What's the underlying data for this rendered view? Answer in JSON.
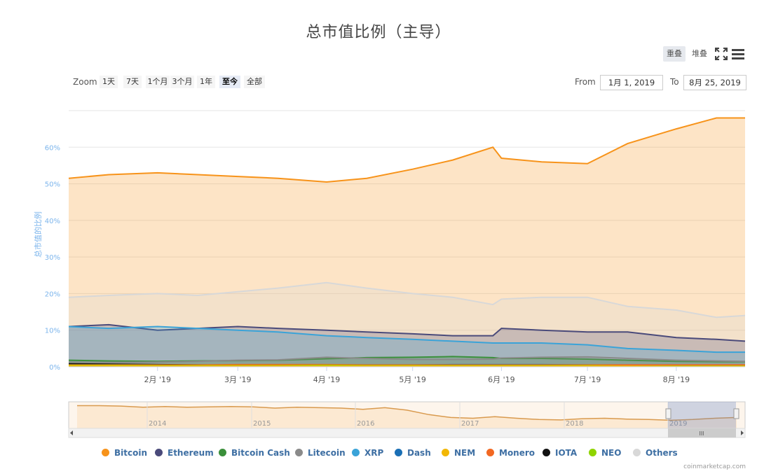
{
  "title": "总市值比例（主导）",
  "toolbar": {
    "overlap": "重叠",
    "stacked": "堆叠",
    "fullscreen_icon": "fullscreen-icon",
    "menu_icon": "hamburger-menu-icon"
  },
  "zoom": {
    "label": "Zoom",
    "buttons": [
      "1天",
      "7天",
      "1个月",
      "3个月",
      "1年",
      "至今",
      "全部"
    ],
    "active": "至今"
  },
  "range": {
    "from_label": "From",
    "from_value": "1月 1, 2019",
    "to_label": "To",
    "to_value": "8月 25, 2019"
  },
  "chart_data": {
    "type": "area",
    "ylabel": "总市值的比例",
    "ylim": [
      0,
      70
    ],
    "yticks": [
      "0%",
      "10%",
      "20%",
      "30%",
      "40%",
      "50%",
      "60%"
    ],
    "xticks": [
      "2月 '19",
      "3月 '19",
      "4月 '19",
      "5月 '19",
      "6月 '19",
      "7月 '19",
      "8月 '19"
    ],
    "x": [
      "2019-01-01",
      "2019-01-15",
      "2019-02-01",
      "2019-02-15",
      "2019-03-01",
      "2019-03-15",
      "2019-04-01",
      "2019-04-15",
      "2019-05-01",
      "2019-05-15",
      "2019-05-29",
      "2019-06-01",
      "2019-06-15",
      "2019-07-01",
      "2019-07-15",
      "2019-08-01",
      "2019-08-15",
      "2019-08-25"
    ],
    "series": [
      {
        "name": "Bitcoin",
        "color": "#f7931a",
        "values": [
          51.5,
          52.5,
          53,
          52.5,
          52,
          51.5,
          50.5,
          51.5,
          54,
          56.5,
          60,
          57,
          56,
          55.5,
          61,
          65,
          68,
          68
        ]
      },
      {
        "name": "Ethereum",
        "color": "#4a4a7a",
        "values": [
          11,
          11.5,
          10,
          10.5,
          11,
          10.5,
          10,
          9.5,
          9,
          8.5,
          8.5,
          10.5,
          10,
          9.5,
          9.5,
          8,
          7.5,
          7
        ]
      },
      {
        "name": "Bitcoin Cash",
        "color": "#3a8f3a",
        "values": [
          1.8,
          1.6,
          1.5,
          1.6,
          1.7,
          1.8,
          2.2,
          2.5,
          2.6,
          2.8,
          2.5,
          2.3,
          2.3,
          2.1,
          1.8,
          1.5,
          1.4,
          1.4
        ]
      },
      {
        "name": "Litecoin",
        "color": "#8a8a8a",
        "values": [
          1.3,
          1.2,
          1.3,
          1.5,
          1.8,
          1.9,
          2.6,
          2.3,
          2.0,
          2.0,
          2.1,
          2.4,
          2.6,
          2.7,
          2.3,
          1.8,
          1.6,
          1.5
        ]
      },
      {
        "name": "XRP",
        "color": "#3aa3d8",
        "values": [
          11,
          10.5,
          11,
          10.5,
          10,
          9.5,
          8.5,
          8,
          7.5,
          7,
          6.5,
          6.5,
          6.5,
          6,
          5,
          4.5,
          4,
          4
        ]
      },
      {
        "name": "Dash",
        "color": "#1a6fb5",
        "values": [
          0.5,
          0.5,
          0.5,
          0.4,
          0.4,
          0.4,
          0.5,
          0.5,
          0.5,
          0.6,
          0.6,
          0.6,
          0.6,
          0.5,
          0.4,
          0.4,
          0.3,
          0.3
        ]
      },
      {
        "name": "NEM",
        "color": "#f2b705",
        "values": [
          0.3,
          0.3,
          0.2,
          0.2,
          0.2,
          0.2,
          0.2,
          0.2,
          0.2,
          0.2,
          0.2,
          0.2,
          0.2,
          0.2,
          0.2,
          0.1,
          0.1,
          0.1
        ]
      },
      {
        "name": "Monero",
        "color": "#f26822",
        "values": [
          0.5,
          0.5,
          0.5,
          0.5,
          0.6,
          0.6,
          0.6,
          0.5,
          0.5,
          0.5,
          0.5,
          0.5,
          0.5,
          0.5,
          0.5,
          0.5,
          0.5,
          0.5
        ]
      },
      {
        "name": "IOTA",
        "color": "#111111",
        "values": [
          0.8,
          0.7,
          0.6,
          0.5,
          0.4,
          0.4,
          0.4,
          0.3,
          0.3,
          0.3,
          0.3,
          0.3,
          0.3,
          0.3,
          0.3,
          0.2,
          0.2,
          0.2
        ]
      },
      {
        "name": "NEO",
        "color": "#8fd400",
        "values": [
          0.4,
          0.4,
          0.3,
          0.3,
          0.3,
          0.3,
          0.4,
          0.3,
          0.3,
          0.3,
          0.3,
          0.3,
          0.3,
          0.3,
          0.2,
          0.2,
          0.2,
          0.2
        ]
      },
      {
        "name": "Others",
        "color": "#d8d8d8",
        "values": [
          19,
          19.5,
          20,
          19.5,
          20.5,
          21.5,
          23,
          21.5,
          20,
          19,
          17,
          18.5,
          19,
          19,
          16.5,
          15.5,
          13.5,
          14
        ]
      }
    ],
    "navigator": {
      "xticks": [
        "2014",
        "2015",
        "2016",
        "2017",
        "2018",
        "2019"
      ],
      "values": [
        89,
        89,
        88,
        85,
        87,
        85,
        86,
        87,
        86,
        83,
        85,
        84,
        83,
        80,
        84,
        78,
        67,
        60,
        58,
        62,
        58,
        55,
        54,
        57,
        58,
        56,
        55,
        53,
        55,
        58,
        60
      ]
    },
    "legend_position": "bottom-center",
    "grid": true
  },
  "credits": "coinmarketcap.com"
}
